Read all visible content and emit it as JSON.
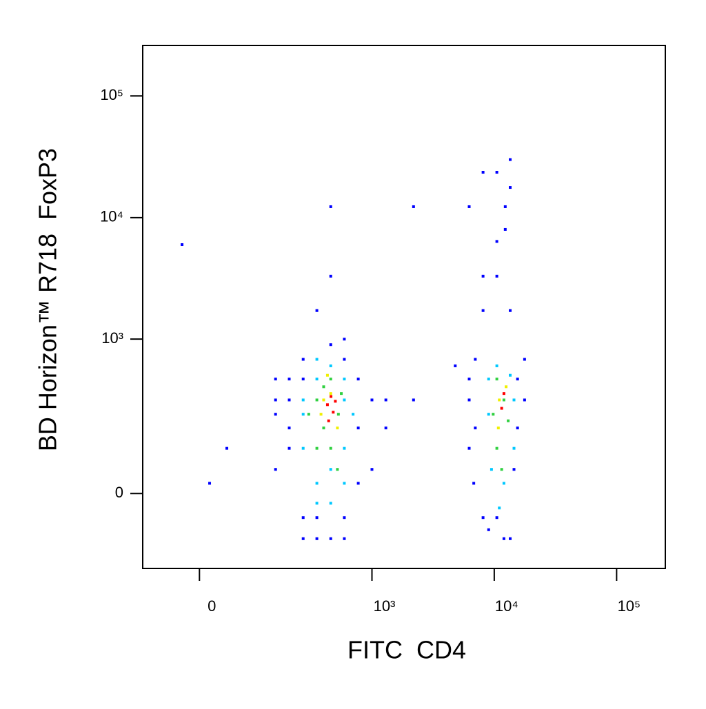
{
  "chart_data": {
    "type": "scatter",
    "x_label": "FITC  CD4",
    "y_label": "BD Horizon™ R718  FoxP3",
    "xscale": "biexponential",
    "yscale": "biexponential",
    "xlim": [
      -100,
      250000
    ],
    "ylim": [
      -210,
      260000
    ],
    "xticks": [
      0,
      {
        "value": 1000,
        "label": "10³"
      },
      {
        "value": 10000,
        "label": "10⁴"
      },
      {
        "value": 100000,
        "label": "10⁵"
      }
    ],
    "yticks": [
      0,
      {
        "value": 1000,
        "label": "10³"
      },
      {
        "value": 10000,
        "label": "10⁴"
      },
      {
        "value": 100000,
        "label": "10⁵"
      }
    ],
    "series": [
      {
        "color": "#0000ff",
        "x": [
          154,
          204,
          154,
          269,
          351,
          593,
          772,
          1300,
          1300,
          2190,
          593,
          269,
          204,
          154,
          351,
          458,
          458,
          -26,
          15,
          42,
          8100,
          10500,
          12300,
          10500,
          13500,
          8100,
          13500,
          10500,
          12300,
          6240,
          17700,
          17700,
          6240,
          6240,
          6240,
          8100,
          13500,
          10500,
          2190,
          13500,
          8100,
          4800,
          204,
          269,
          458,
          593,
          772,
          772,
          1000,
          593,
          351,
          204,
          269,
          458,
          1000,
          154,
          7000,
          7000,
          15500,
          15500,
          12000,
          9000,
          14500,
          6800
        ],
        "y": [
          230,
          104,
          51,
          -51,
          -104,
          -51,
          21,
          308,
          171,
          308,
          680,
          680,
          465,
          465,
          1720,
          3300,
          12300,
          6000,
          21,
          104,
          3300,
          6370,
          12300,
          23600,
          17700,
          1720,
          1720,
          3300,
          8000,
          12300,
          680,
          308,
          308,
          104,
          465,
          -51,
          -104,
          -51,
          12300,
          30000,
          23600,
          600,
          308,
          -104,
          -104,
          -104,
          171,
          465,
          308,
          1000,
          -51,
          171,
          465,
          900,
          51,
          308,
          171,
          680,
          171,
          465,
          -104,
          -80,
          51,
          21
        ]
      },
      {
        "color": "#00c8ff",
        "x": [
          269,
          269,
          593,
          593,
          351,
          458,
          351,
          593,
          351,
          458,
          700,
          269,
          351,
          458,
          593,
          9000,
          9000,
          14500,
          14500,
          10500,
          12000,
          9500,
          13500,
          11000
        ],
        "y": [
          308,
          104,
          308,
          104,
          465,
          51,
          21,
          465,
          680,
          600,
          230,
          230,
          -20,
          -20,
          21,
          230,
          465,
          308,
          104,
          600,
          21,
          51,
          500,
          -30
        ]
      },
      {
        "color": "#30d040",
        "x": [
          351,
          351,
          458,
          458,
          530,
          400,
          520,
          400,
          300,
          560,
          10500,
          10500,
          12000,
          11500,
          9800,
          13000
        ],
        "y": [
          308,
          104,
          465,
          104,
          230,
          171,
          51,
          400,
          230,
          350,
          465,
          104,
          308,
          51,
          230,
          200
        ]
      },
      {
        "color": "#f0f000",
        "x": [
          400,
          458,
          520,
          380,
          430,
          11000,
          12500,
          10800
        ],
        "y": [
          308,
          350,
          171,
          230,
          500,
          308,
          400,
          171
        ]
      },
      {
        "color": "#ff0000",
        "x": [
          430,
          480,
          460,
          500,
          440,
          12000,
          11500
        ],
        "y": [
          280,
          240,
          330,
          300,
          200,
          350,
          260
        ]
      }
    ]
  }
}
